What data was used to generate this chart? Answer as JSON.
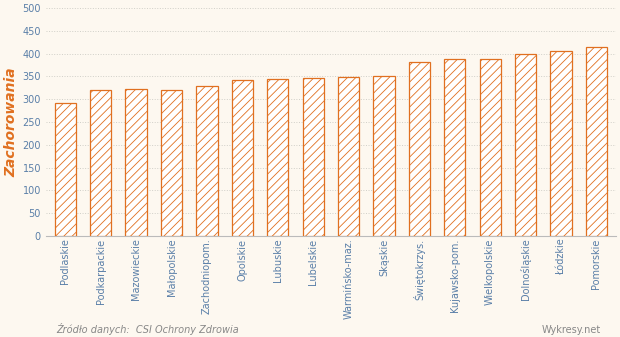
{
  "categories": [
    "Podlaskie",
    "Podkarpackie",
    "Mazowieckie",
    "Małopolskie",
    "Zachodniopom.",
    "Opolskie",
    "Lubuskie",
    "Lubelskie",
    "Warmińsko-maz.",
    "Skąskie",
    "Świętokrzys.",
    "Kujawsko-pom.",
    "Wielkopolskie",
    "Dolnośląskie",
    "Łódzkie",
    "Pomorskie"
  ],
  "values": [
    292,
    320,
    322,
    321,
    330,
    343,
    345,
    347,
    349,
    351,
    381,
    388,
    388,
    399,
    405,
    414
  ],
  "bar_facecolor": "#ffffff",
  "hatch_color": "#e07020",
  "edge_color": "#e07020",
  "background_color": "#fdf8f0",
  "plot_bg_top": "#fdf8f0",
  "ylabel": "Zachorowania",
  "ylim": [
    0,
    500
  ],
  "yticks": [
    0,
    50,
    100,
    150,
    200,
    250,
    300,
    350,
    400,
    450,
    500
  ],
  "grid_color": "#d0cfc8",
  "tick_color": "#5a7fa8",
  "source_text": "Źródło danych:  CSI Ochrony Zdrowia",
  "watermark_text": "Wykresy.net",
  "ylabel_color": "#e07020",
  "ylabel_fontsize": 10,
  "tick_fontsize": 7,
  "source_fontsize": 7
}
